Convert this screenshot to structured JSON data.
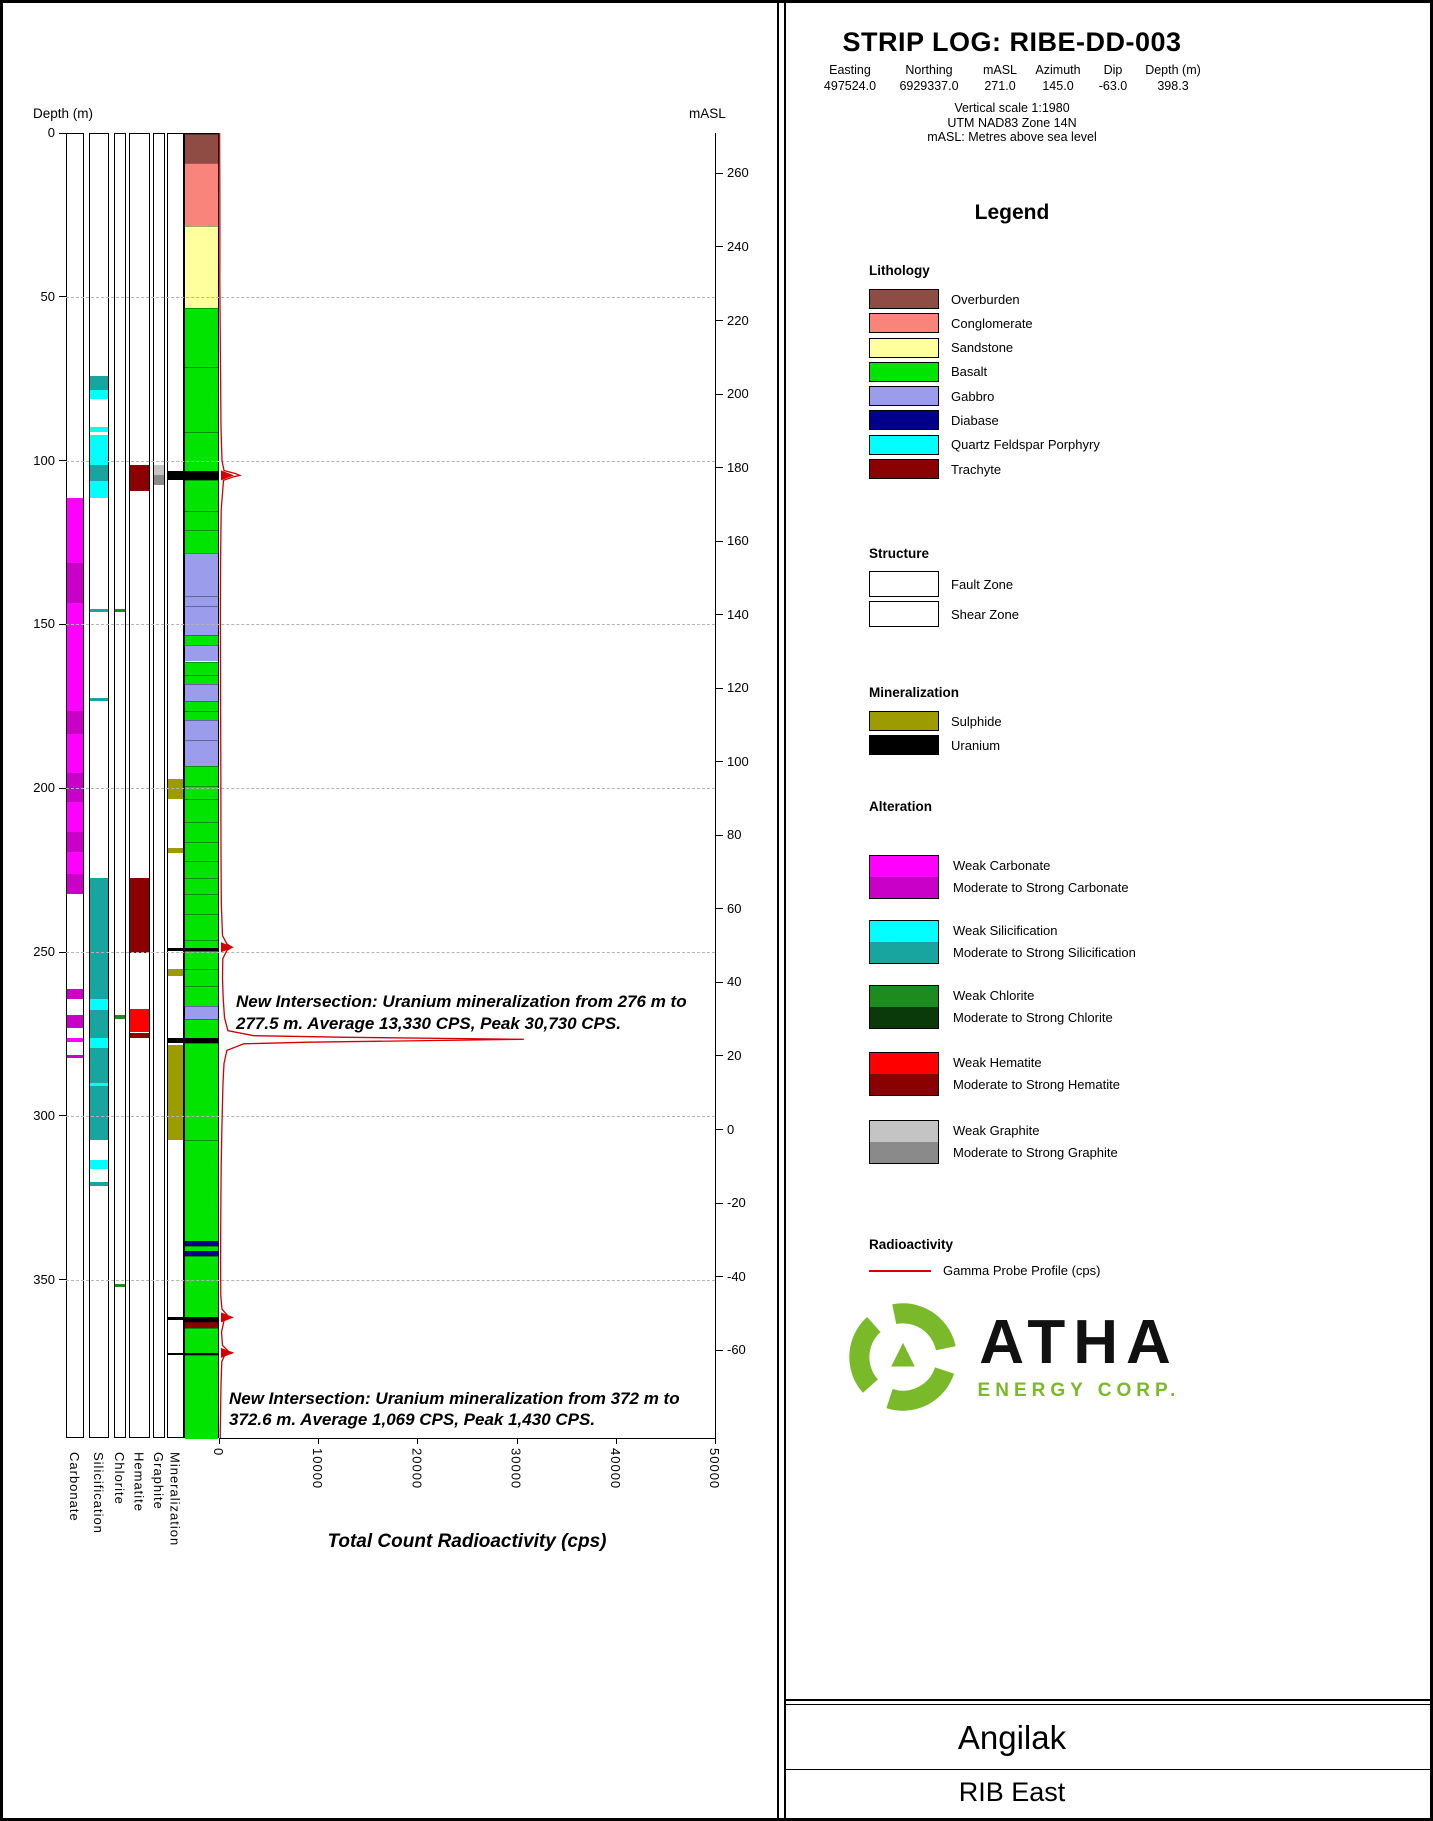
{
  "header": {
    "title": "STRIP LOG: RIBE-DD-003",
    "info": {
      "columns": [
        "Easting",
        "Northing",
        "mASL",
        "Azimuth",
        "Dip",
        "Depth (m)"
      ],
      "values": [
        "497524.0",
        "6929337.0",
        "271.0",
        "145.0",
        "-63.0",
        "398.3"
      ]
    },
    "notes": [
      "Vertical scale 1:1980",
      "UTM NAD83 Zone 14N",
      "mASL: Metres above sea level"
    ]
  },
  "legend": {
    "title": "Legend",
    "lithology": {
      "heading": "Lithology",
      "items": [
        {
          "label": "Overburden",
          "color": "#8e4c45"
        },
        {
          "label": "Conglomerate",
          "color": "#f9847b"
        },
        {
          "label": "Sandstone",
          "color": "#ffff9e"
        },
        {
          "label": "Basalt",
          "color": "#00e400"
        },
        {
          "label": "Gabbro",
          "color": "#9c9cec"
        },
        {
          "label": "Diabase",
          "color": "#00008b"
        },
        {
          "label": "Quartz Feldspar Porphyry",
          "color": "#00ffff"
        },
        {
          "label": "Trachyte",
          "color": "#8b0000"
        }
      ]
    },
    "structure": {
      "heading": "Structure",
      "items": [
        {
          "label": "Fault Zone",
          "pattern": "fault"
        },
        {
          "label": "Shear Zone",
          "pattern": "shear"
        }
      ]
    },
    "mineralization": {
      "heading": "Mineralization",
      "items": [
        {
          "label": "Sulphide",
          "color": "#9c9c00"
        },
        {
          "label": "Uranium",
          "color": "#000000"
        }
      ]
    },
    "alteration": {
      "heading": "Alteration",
      "groups": [
        {
          "track": "Carbonate",
          "weak_label": "Weak Carbonate",
          "strong_label": "Moderate to Strong Carbonate",
          "weak_color": "#ff00ff",
          "strong_color": "#c800c8"
        },
        {
          "track": "Silicification",
          "weak_label": "Weak Silicification",
          "strong_label": "Moderate to Strong Silicification",
          "weak_color": "#00ffff",
          "strong_color": "#18a5a0"
        },
        {
          "track": "Chlorite",
          "weak_label": "Weak Chlorite",
          "strong_label": "Moderate to Strong Chlorite",
          "weak_color": "#1e8b1e",
          "strong_color": "#0a3a0a"
        },
        {
          "track": "Hematite",
          "weak_label": "Weak Hematite",
          "strong_label": "Moderate to Strong Hematite",
          "weak_color": "#ff0000",
          "strong_color": "#8b0000"
        },
        {
          "track": "Graphite",
          "weak_label": "Weak Graphite",
          "strong_label": "Moderate to Strong Graphite",
          "weak_color": "#c4c4c4",
          "strong_color": "#8a8a8a"
        }
      ]
    },
    "radioactivity": {
      "heading": "Radioactivity",
      "items": [
        {
          "label": "Gamma Probe Profile (cps)",
          "color": "#d40000",
          "style": "line"
        }
      ]
    }
  },
  "logo": {
    "name": "ATHA",
    "subtitle": "ENERGY CORP.",
    "color": "#7ab929"
  },
  "footer": {
    "project": "Angilak",
    "area": "RIB East"
  },
  "chart_data": {
    "type": "strip-log",
    "title": "STRIP LOG: RIBE-DD-003",
    "depth_axis": {
      "label": "Depth (m)",
      "ticks": [
        0,
        50,
        100,
        150,
        200,
        250,
        300,
        350
      ],
      "max_depth_m": 398.3
    },
    "masl_axis": {
      "label": "mASL",
      "ticks": [
        260,
        240,
        220,
        200,
        180,
        160,
        140,
        120,
        100,
        80,
        60,
        40,
        20,
        0,
        -20,
        -40,
        -60
      ],
      "collar_masl": 271.0,
      "dip_deg": -63.0
    },
    "xaxis": {
      "title": "Total Count Radioactivity (cps)",
      "ticks": [
        0,
        10000,
        20000,
        30000,
        40000,
        50000
      ],
      "max": 50000
    },
    "lithology": {
      "intervals": [
        {
          "from": 0,
          "to": 9,
          "unit": "Overburden"
        },
        {
          "from": 9,
          "to": 28,
          "unit": "Conglomerate"
        },
        {
          "from": 28,
          "to": 53,
          "unit": "Sandstone"
        },
        {
          "from": 53,
          "to": 71,
          "unit": "Basalt"
        },
        {
          "from": 71,
          "to": 91,
          "unit": "Basalt",
          "structure": "shear"
        },
        {
          "from": 91,
          "to": 103,
          "unit": "Basalt"
        },
        {
          "from": 103,
          "to": 105.5,
          "unit": "Uranium"
        },
        {
          "from": 105.5,
          "to": 115,
          "unit": "Basalt"
        },
        {
          "from": 115,
          "to": 121,
          "unit": "Basalt",
          "structure": "shear"
        },
        {
          "from": 121,
          "to": 128,
          "unit": "Basalt"
        },
        {
          "from": 128,
          "to": 141,
          "unit": "Gabbro"
        },
        {
          "from": 141,
          "to": 144,
          "unit": "Gabbro",
          "structure": "shear"
        },
        {
          "from": 144,
          "to": 153,
          "unit": "Gabbro"
        },
        {
          "from": 153,
          "to": 156,
          "unit": "Basalt"
        },
        {
          "from": 156,
          "to": 161,
          "unit": "Gabbro",
          "structure": "shear"
        },
        {
          "from": 161,
          "to": 165,
          "unit": "Basalt",
          "structure": "shear"
        },
        {
          "from": 165,
          "to": 168,
          "unit": "Basalt"
        },
        {
          "from": 168,
          "to": 173,
          "unit": "Gabbro"
        },
        {
          "from": 173,
          "to": 176,
          "unit": "Basalt",
          "structure": "shear"
        },
        {
          "from": 176,
          "to": 179,
          "unit": "Basalt"
        },
        {
          "from": 179,
          "to": 185,
          "unit": "Gabbro",
          "structure": "shear"
        },
        {
          "from": 185,
          "to": 193,
          "unit": "Gabbro"
        },
        {
          "from": 193,
          "to": 199,
          "unit": "Basalt"
        },
        {
          "from": 199,
          "to": 203,
          "unit": "Basalt",
          "structure": "shear"
        },
        {
          "from": 203,
          "to": 210,
          "unit": "Basalt"
        },
        {
          "from": 210,
          "to": 216,
          "unit": "Basalt",
          "structure": "shear"
        },
        {
          "from": 216,
          "to": 222,
          "unit": "Basalt"
        },
        {
          "from": 222,
          "to": 227,
          "unit": "Basalt",
          "structure": "shear"
        },
        {
          "from": 227,
          "to": 232,
          "unit": "Basalt"
        },
        {
          "from": 232,
          "to": 238,
          "unit": "Basalt",
          "structure": "shear"
        },
        {
          "from": 238,
          "to": 246,
          "unit": "Basalt"
        },
        {
          "from": 246,
          "to": 248.5,
          "unit": "Basalt",
          "structure": "shear"
        },
        {
          "from": 248.5,
          "to": 249.5,
          "unit": "Uranium"
        },
        {
          "from": 249.5,
          "to": 255,
          "unit": "Basalt"
        },
        {
          "from": 255,
          "to": 260,
          "unit": "Basalt",
          "structure": "shear"
        },
        {
          "from": 260,
          "to": 266,
          "unit": "Basalt"
        },
        {
          "from": 266,
          "to": 270,
          "unit": "Gabbro"
        },
        {
          "from": 270,
          "to": 276,
          "unit": "Basalt"
        },
        {
          "from": 276,
          "to": 277.5,
          "unit": "Uranium"
        },
        {
          "from": 277.5,
          "to": 307,
          "unit": "Basalt",
          "structure": "shear"
        },
        {
          "from": 307,
          "to": 338,
          "unit": "Basalt"
        },
        {
          "from": 338,
          "to": 339.5,
          "unit": "Diabase"
        },
        {
          "from": 339.5,
          "to": 341,
          "unit": "Basalt"
        },
        {
          "from": 341,
          "to": 342.5,
          "unit": "Diabase"
        },
        {
          "from": 342.5,
          "to": 361,
          "unit": "Basalt"
        },
        {
          "from": 361,
          "to": 362.5,
          "unit": "Uranium"
        },
        {
          "from": 362.5,
          "to": 364.5,
          "unit": "Trachyte"
        },
        {
          "from": 364.5,
          "to": 372,
          "unit": "Basalt"
        },
        {
          "from": 372,
          "to": 372.6,
          "unit": "Uranium"
        },
        {
          "from": 372.6,
          "to": 398.3,
          "unit": "Basalt"
        }
      ]
    },
    "alteration_tracks": [
      {
        "name": "Carbonate",
        "intervals": [
          {
            "from": 111,
            "to": 131,
            "grade": "weak"
          },
          {
            "from": 131,
            "to": 143,
            "grade": "strong"
          },
          {
            "from": 143,
            "to": 176,
            "grade": "weak"
          },
          {
            "from": 176,
            "to": 183,
            "grade": "strong"
          },
          {
            "from": 183,
            "to": 195,
            "grade": "weak"
          },
          {
            "from": 195,
            "to": 204,
            "grade": "strong"
          },
          {
            "from": 204,
            "to": 213,
            "grade": "weak"
          },
          {
            "from": 213,
            "to": 219,
            "grade": "strong"
          },
          {
            "from": 219,
            "to": 226,
            "grade": "weak"
          },
          {
            "from": 226,
            "to": 232,
            "grade": "strong"
          },
          {
            "from": 261,
            "to": 264,
            "grade": "strong"
          },
          {
            "from": 269,
            "to": 273,
            "grade": "strong"
          },
          {
            "from": 276,
            "to": 277,
            "grade": "weak"
          },
          {
            "from": 281,
            "to": 282,
            "grade": "strong"
          }
        ]
      },
      {
        "name": "Silicification",
        "intervals": [
          {
            "from": 74,
            "to": 78,
            "grade": "strong"
          },
          {
            "from": 78,
            "to": 81,
            "grade": "weak"
          },
          {
            "from": 89.5,
            "to": 91,
            "grade": "weak"
          },
          {
            "from": 92,
            "to": 101,
            "grade": "weak"
          },
          {
            "from": 101,
            "to": 106,
            "grade": "strong"
          },
          {
            "from": 106,
            "to": 111,
            "grade": "weak"
          },
          {
            "from": 145,
            "to": 146,
            "grade": "strong"
          },
          {
            "from": 172,
            "to": 173,
            "grade": "strong"
          },
          {
            "from": 227,
            "to": 264,
            "grade": "strong"
          },
          {
            "from": 264,
            "to": 267.5,
            "grade": "weak"
          },
          {
            "from": 267.5,
            "to": 276,
            "grade": "strong"
          },
          {
            "from": 276,
            "to": 279,
            "grade": "weak"
          },
          {
            "from": 279,
            "to": 289.5,
            "grade": "strong"
          },
          {
            "from": 289.5,
            "to": 290.5,
            "grade": "weak"
          },
          {
            "from": 290.5,
            "to": 307,
            "grade": "strong"
          },
          {
            "from": 313,
            "to": 316,
            "grade": "weak"
          },
          {
            "from": 320,
            "to": 321,
            "grade": "strong"
          }
        ]
      },
      {
        "name": "Chlorite",
        "intervals": [
          {
            "from": 145,
            "to": 146,
            "grade": "weak"
          },
          {
            "from": 269,
            "to": 270,
            "grade": "weak"
          },
          {
            "from": 351,
            "to": 352,
            "grade": "weak"
          }
        ]
      },
      {
        "name": "Hematite",
        "intervals": [
          {
            "from": 101,
            "to": 109,
            "grade": "strong"
          },
          {
            "from": 227,
            "to": 250,
            "grade": "strong"
          },
          {
            "from": 267,
            "to": 274,
            "grade": "weak"
          },
          {
            "from": 274.5,
            "to": 276,
            "grade": "strong"
          }
        ]
      },
      {
        "name": "Graphite",
        "intervals": [
          {
            "from": 101,
            "to": 104,
            "grade": "weak"
          },
          {
            "from": 104,
            "to": 107,
            "grade": "strong"
          }
        ]
      }
    ],
    "mineralization_track": {
      "name": "Mineralization",
      "intervals": [
        {
          "from": 103,
          "to": 105.5,
          "type": "Uranium"
        },
        {
          "from": 197,
          "to": 203,
          "type": "Sulphide"
        },
        {
          "from": 218,
          "to": 219.5,
          "type": "Sulphide"
        },
        {
          "from": 248.5,
          "to": 249.5,
          "type": "Uranium"
        },
        {
          "from": 255,
          "to": 257,
          "type": "Sulphide"
        },
        {
          "from": 276,
          "to": 277.5,
          "type": "Uranium"
        },
        {
          "from": 278,
          "to": 307,
          "type": "Sulphide"
        },
        {
          "from": 361,
          "to": 362,
          "type": "Uranium"
        },
        {
          "from": 372,
          "to": 372.6,
          "type": "Uranium"
        }
      ]
    },
    "gamma": {
      "name": "Gamma Probe Profile (cps)",
      "points": [
        [
          0,
          60
        ],
        [
          15,
          80
        ],
        [
          30,
          90
        ],
        [
          45,
          80
        ],
        [
          60,
          120
        ],
        [
          75,
          160
        ],
        [
          90,
          200
        ],
        [
          100,
          300
        ],
        [
          103,
          500
        ],
        [
          104,
          1700
        ],
        [
          104.5,
          2100
        ],
        [
          105,
          1400
        ],
        [
          106,
          450
        ],
        [
          115,
          220
        ],
        [
          130,
          160
        ],
        [
          145,
          140
        ],
        [
          160,
          150
        ],
        [
          175,
          160
        ],
        [
          190,
          180
        ],
        [
          205,
          190
        ],
        [
          220,
          200
        ],
        [
          235,
          230
        ],
        [
          245,
          350
        ],
        [
          247.5,
          800
        ],
        [
          248.5,
          1300
        ],
        [
          249.5,
          800
        ],
        [
          252,
          380
        ],
        [
          258,
          350
        ],
        [
          264,
          420
        ],
        [
          270,
          550
        ],
        [
          274,
          900
        ],
        [
          275.5,
          3500
        ],
        [
          276,
          13000
        ],
        [
          276.6,
          30730
        ],
        [
          277,
          21000
        ],
        [
          277.5,
          9000
        ],
        [
          278,
          2500
        ],
        [
          280,
          800
        ],
        [
          284,
          500
        ],
        [
          290,
          400
        ],
        [
          297,
          340
        ],
        [
          305,
          280
        ],
        [
          315,
          220
        ],
        [
          325,
          190
        ],
        [
          335,
          175
        ],
        [
          345,
          165
        ],
        [
          355,
          180
        ],
        [
          359,
          300
        ],
        [
          361,
          900
        ],
        [
          361.6,
          1150
        ],
        [
          362.5,
          500
        ],
        [
          366,
          250
        ],
        [
          370,
          350
        ],
        [
          372,
          1000
        ],
        [
          372.3,
          1430
        ],
        [
          372.8,
          600
        ],
        [
          375,
          280
        ],
        [
          382,
          200
        ],
        [
          390,
          160
        ],
        [
          398.3,
          120
        ]
      ],
      "arrow_depths": [
        104.5,
        248.5,
        361.5,
        372.3
      ],
      "intersections": [
        {
          "from_m": 276,
          "to_m": 277.5,
          "avg_cps": 13330,
          "peak_cps": 30730
        },
        {
          "from_m": 372,
          "to_m": 372.6,
          "avg_cps": 1069,
          "peak_cps": 1430
        }
      ]
    },
    "annotations": [
      {
        "depth": 262,
        "text": "New Intersection: Uranium mineralization from 276 m to 277.5 m. Average 13,330 CPS, Peak 30,730 CPS."
      },
      {
        "depth": 383,
        "text": "New Intersection: Uranium mineralization from 372 m to 372.6 m. Average 1,069 CPS, Peak 1,430 CPS."
      }
    ]
  }
}
